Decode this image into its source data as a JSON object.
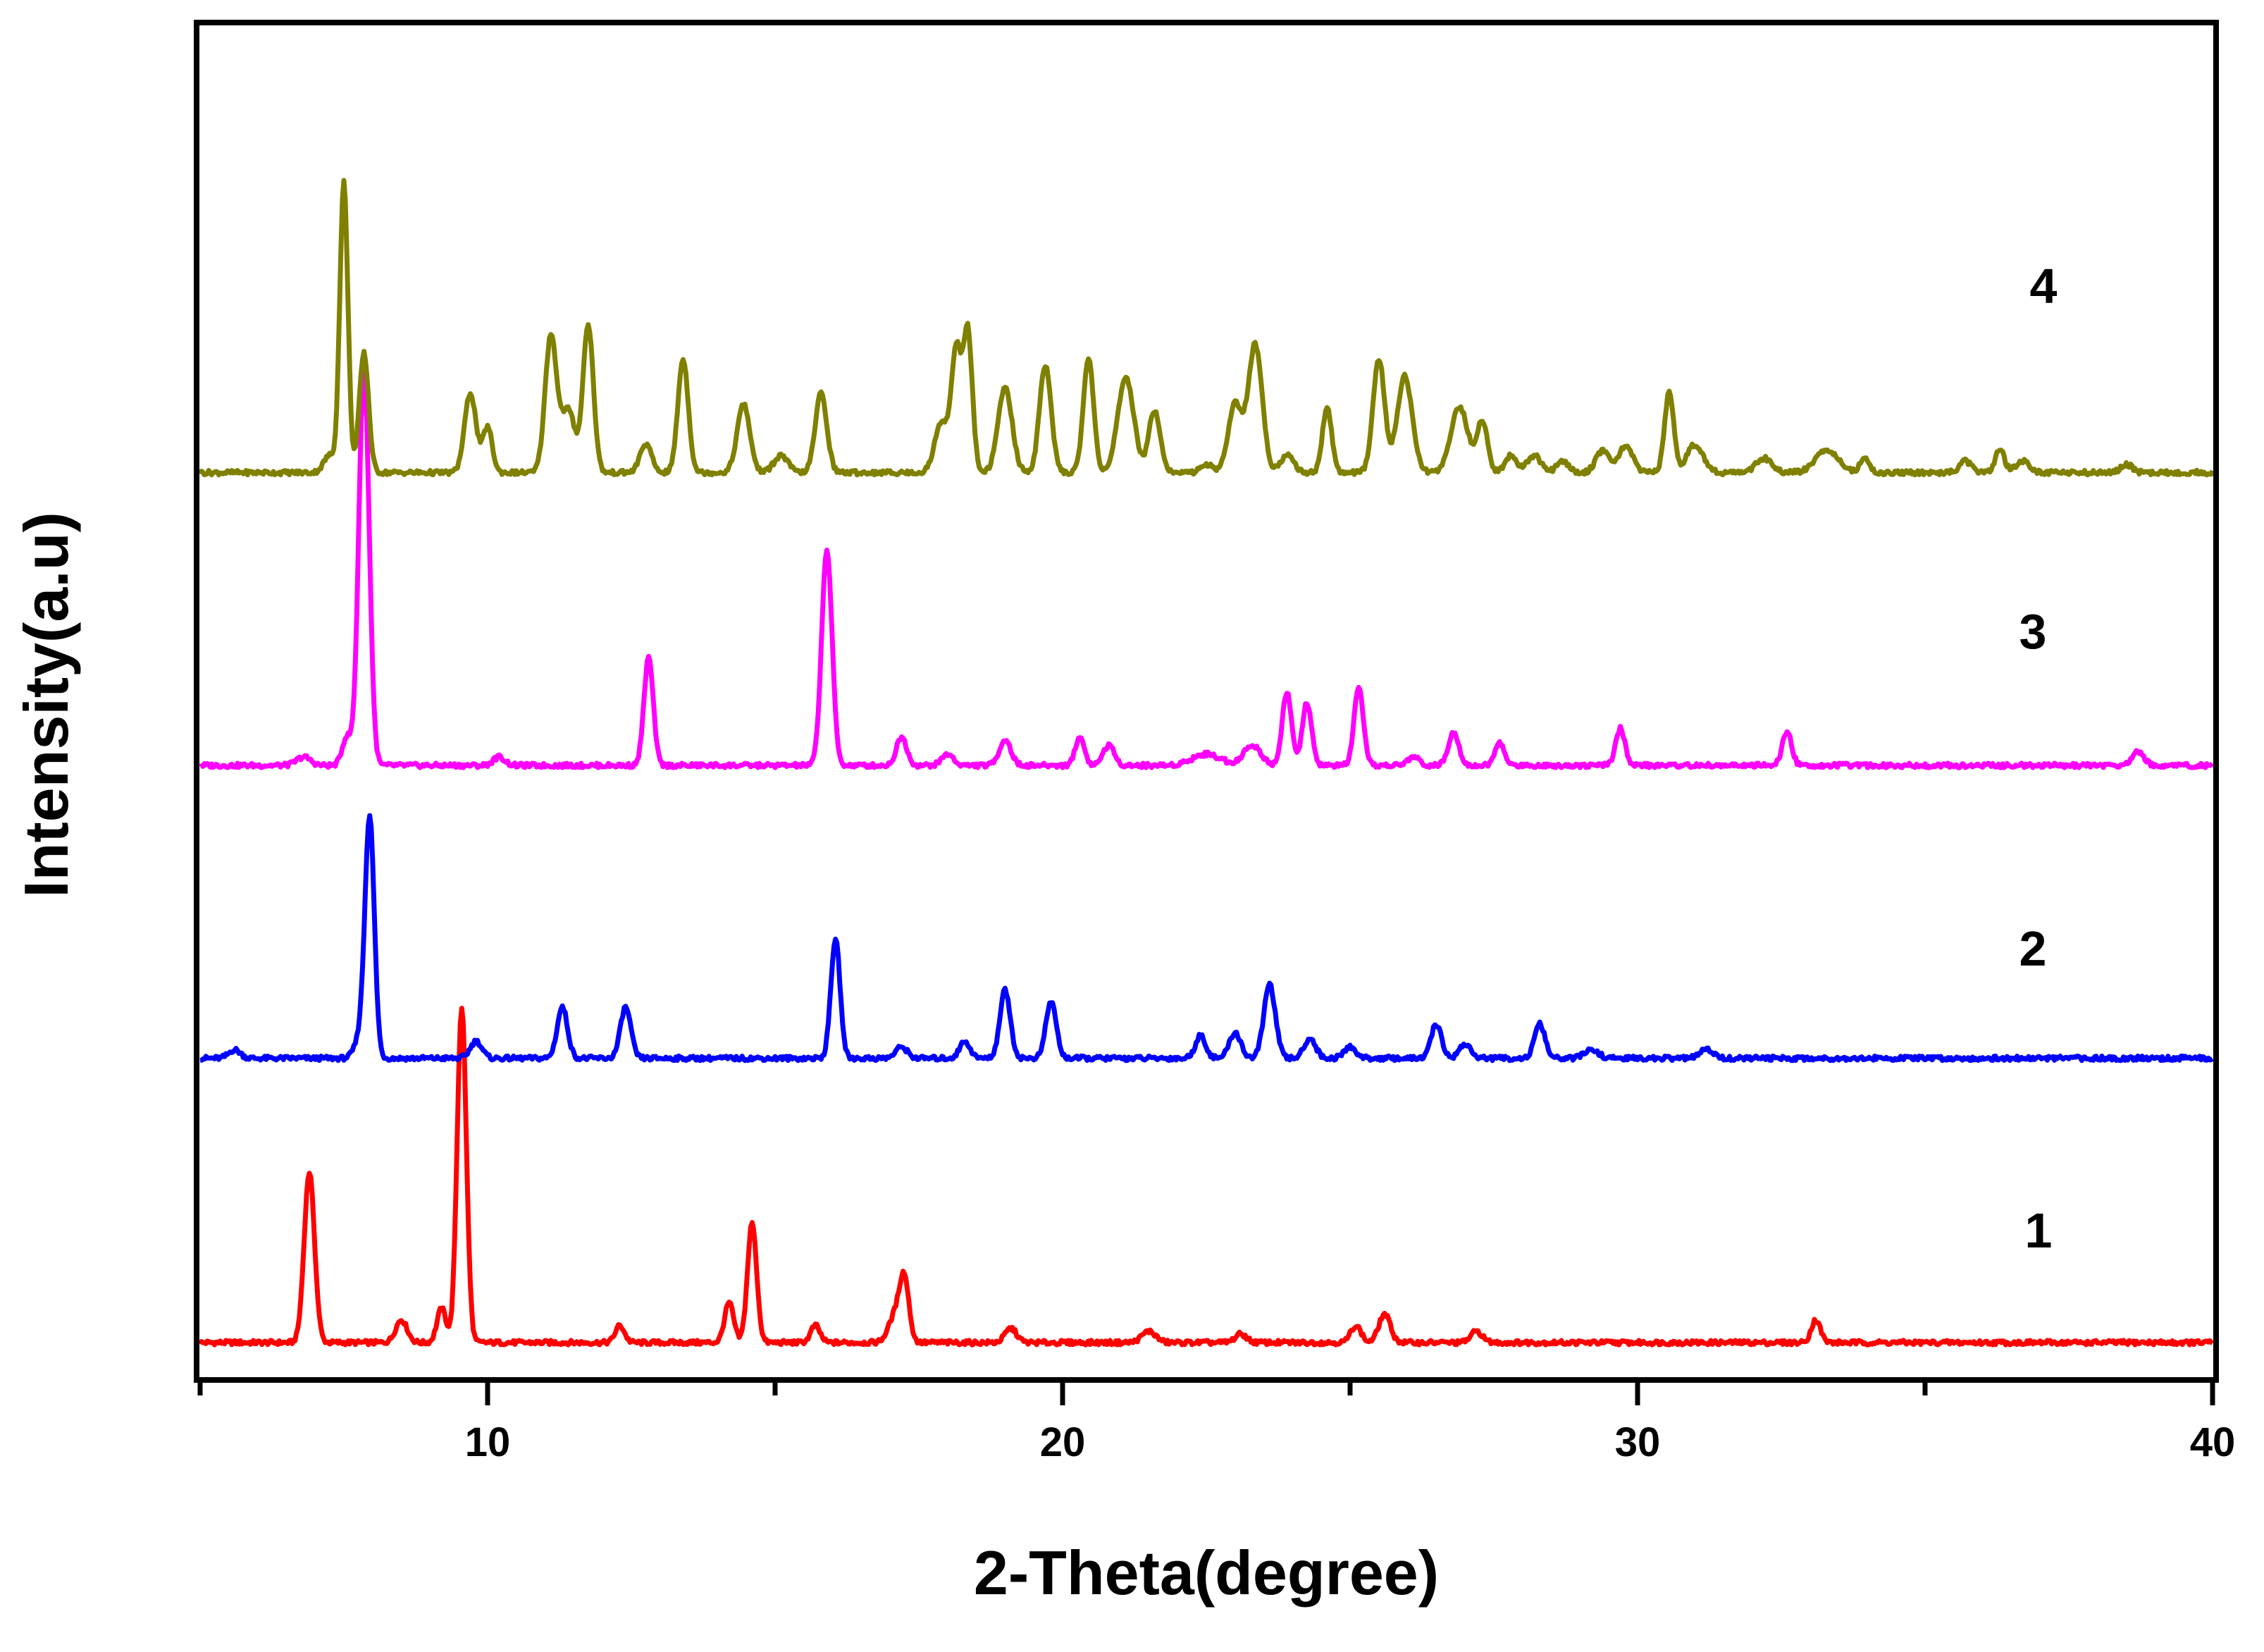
{
  "chart_data": {
    "type": "line",
    "title": "",
    "xlabel": "2-Theta(degree)",
    "ylabel": "Intensity(a.u)",
    "xlim": [
      5,
      40
    ],
    "ylim": [
      0,
      440
    ],
    "x_ticks": [
      10,
      20,
      30,
      40
    ],
    "x_tick_labels": [
      "10",
      "20",
      "30",
      "40"
    ],
    "x_minor_ticks": [
      5,
      15,
      25,
      35
    ],
    "y_ticks_shown": false,
    "grid": false,
    "series": [
      {
        "name": "1",
        "label": "1",
        "color": "#ff0000",
        "baseline": 0,
        "peaks": [
          [
            6.9,
            60,
            0.09
          ],
          [
            8.5,
            8,
            0.1
          ],
          [
            9.2,
            12,
            0.08
          ],
          [
            9.55,
            118,
            0.08
          ],
          [
            12.3,
            6,
            0.08
          ],
          [
            14.2,
            14,
            0.08
          ],
          [
            14.6,
            42,
            0.08
          ],
          [
            15.7,
            6,
            0.08
          ],
          [
            17.1,
            10,
            0.12
          ],
          [
            17.25,
            20,
            0.08
          ],
          [
            19.1,
            5,
            0.1
          ],
          [
            21.5,
            4,
            0.12
          ],
          [
            23.1,
            3,
            0.1
          ],
          [
            25.1,
            6,
            0.09
          ],
          [
            25.6,
            10,
            0.1
          ],
          [
            27.2,
            4,
            0.1
          ],
          [
            33.1,
            8,
            0.08
          ]
        ]
      },
      {
        "name": "2",
        "label": "2",
        "color": "#0000ff",
        "baseline": 100,
        "peaks": [
          [
            5.6,
            3,
            0.1
          ],
          [
            7.8,
            8,
            0.1
          ],
          [
            7.95,
            83,
            0.08
          ],
          [
            9.8,
            6,
            0.1
          ],
          [
            11.3,
            18,
            0.09
          ],
          [
            12.4,
            18,
            0.09
          ],
          [
            16.05,
            42,
            0.08
          ],
          [
            17.2,
            4,
            0.1
          ],
          [
            18.3,
            6,
            0.09
          ],
          [
            19.0,
            24,
            0.09
          ],
          [
            19.8,
            20,
            0.09
          ],
          [
            22.4,
            8,
            0.09
          ],
          [
            23.0,
            9,
            0.1
          ],
          [
            23.6,
            26,
            0.1
          ],
          [
            24.3,
            7,
            0.1
          ],
          [
            25,
            4,
            0.1
          ],
          [
            26.5,
            12,
            0.09
          ],
          [
            27,
            5,
            0.1
          ],
          [
            28.3,
            12,
            0.09
          ],
          [
            29.2,
            3,
            0.12
          ],
          [
            31.2,
            3,
            0.12
          ]
        ]
      },
      {
        "name": "3",
        "label": "3",
        "color": "#ff00ff",
        "baseline": 203,
        "peaks": [
          [
            6.8,
            3,
            0.12
          ],
          [
            7.55,
            10,
            0.08
          ],
          [
            7.85,
            140,
            0.09
          ],
          [
            10.2,
            3,
            0.1
          ],
          [
            12.8,
            38,
            0.08
          ],
          [
            15.9,
            76,
            0.09
          ],
          [
            17.2,
            10,
            0.09
          ],
          [
            18.0,
            4,
            0.1
          ],
          [
            19.0,
            9,
            0.1
          ],
          [
            20.3,
            10,
            0.08
          ],
          [
            20.8,
            7,
            0.1
          ],
          [
            22.5,
            4,
            0.25
          ],
          [
            23.3,
            7,
            0.15
          ],
          [
            23.9,
            26,
            0.08
          ],
          [
            24.25,
            22,
            0.08
          ],
          [
            25.15,
            27,
            0.08
          ],
          [
            26.1,
            3,
            0.1
          ],
          [
            26.8,
            12,
            0.09
          ],
          [
            27.6,
            8,
            0.08
          ],
          [
            29.7,
            13,
            0.08
          ],
          [
            32.6,
            12,
            0.08
          ],
          [
            38.7,
            5,
            0.1
          ]
        ]
      },
      {
        "name": "4",
        "label": "4",
        "color": "#808000",
        "baseline": 306,
        "peaks": [
          [
            7.25,
            6,
            0.1
          ],
          [
            7.5,
            102,
            0.07
          ],
          [
            7.85,
            42,
            0.08
          ],
          [
            9.7,
            28,
            0.1
          ],
          [
            10.0,
            16,
            0.08
          ],
          [
            11.1,
            48,
            0.1
          ],
          [
            11.4,
            22,
            0.12
          ],
          [
            11.75,
            52,
            0.09
          ],
          [
            12.75,
            10,
            0.1
          ],
          [
            13.4,
            40,
            0.09
          ],
          [
            14.45,
            24,
            0.11
          ],
          [
            15.1,
            6,
            0.12
          ],
          [
            15.8,
            28,
            0.1
          ],
          [
            17.9,
            18,
            0.12
          ],
          [
            18.15,
            42,
            0.08
          ],
          [
            18.35,
            50,
            0.08
          ],
          [
            19.0,
            30,
            0.12
          ],
          [
            19.7,
            38,
            0.1
          ],
          [
            20.45,
            40,
            0.09
          ],
          [
            21.1,
            33,
            0.14
          ],
          [
            21.6,
            22,
            0.1
          ],
          [
            22.5,
            3,
            0.1
          ],
          [
            23.0,
            24,
            0.12
          ],
          [
            23.35,
            45,
            0.12
          ],
          [
            23.9,
            6,
            0.12
          ],
          [
            24.6,
            23,
            0.08
          ],
          [
            25.5,
            40,
            0.1
          ],
          [
            25.95,
            34,
            0.13
          ],
          [
            26.9,
            23,
            0.15
          ],
          [
            27.3,
            18,
            0.09
          ],
          [
            27.8,
            6,
            0.1
          ],
          [
            28.2,
            6,
            0.12
          ],
          [
            28.7,
            4,
            0.1
          ],
          [
            29.4,
            8,
            0.12
          ],
          [
            29.8,
            10,
            0.11
          ],
          [
            30.55,
            28,
            0.08
          ],
          [
            31.0,
            10,
            0.14
          ],
          [
            32.2,
            5,
            0.14
          ],
          [
            33.3,
            8,
            0.2
          ],
          [
            33.95,
            5,
            0.08
          ],
          [
            35.7,
            4,
            0.1
          ],
          [
            36.3,
            8,
            0.08
          ],
          [
            36.7,
            4,
            0.12
          ],
          [
            38.5,
            3,
            0.1
          ]
        ]
      }
    ]
  }
}
